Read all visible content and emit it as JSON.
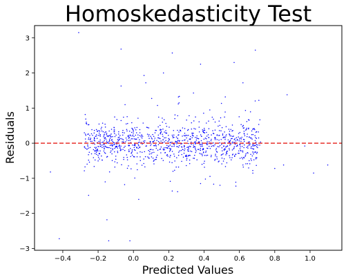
{
  "chart_data": {
    "type": "scatter",
    "title": "Homoskedasticity Test",
    "xlabel": "Predicted Values",
    "ylabel": "Residuals",
    "xlim": [
      -0.56,
      1.18
    ],
    "ylim": [
      -3.05,
      3.35
    ],
    "xticks": [
      -0.4,
      -0.2,
      0.0,
      0.2,
      0.4,
      0.6,
      0.8,
      1.0
    ],
    "xtick_labels": [
      "−0.4",
      "−0.2",
      "0.0",
      "0.2",
      "0.4",
      "0.6",
      "0.8",
      "1.0"
    ],
    "yticks": [
      -3,
      -2,
      -1,
      0,
      1,
      2,
      3
    ],
    "ytick_labels": [
      "−3",
      "−2",
      "−1",
      "0",
      "1",
      "2",
      "3"
    ],
    "reference_line": {
      "y": 0,
      "style": "dashed",
      "color": "#e8312a"
    },
    "point_color": "#0000ff",
    "grid": false,
    "series": [
      {
        "points": [
          [
            -0.31,
            3.15
          ],
          [
            -0.07,
            2.68
          ],
          [
            0.22,
            2.57
          ],
          [
            0.38,
            2.25
          ],
          [
            0.57,
            2.3
          ],
          [
            0.69,
            2.65
          ],
          [
            0.17,
            2.0
          ],
          [
            0.06,
            1.93
          ],
          [
            -0.07,
            1.63
          ],
          [
            0.07,
            1.72
          ],
          [
            0.62,
            1.72
          ],
          [
            0.34,
            1.43
          ],
          [
            0.52,
            1.32
          ],
          [
            0.87,
            1.38
          ],
          [
            0.71,
            1.22
          ],
          [
            -0.47,
            -0.82
          ],
          [
            -0.42,
            -2.72
          ],
          [
            -0.15,
            -2.18
          ],
          [
            -0.14,
            -2.78
          ],
          [
            -0.02,
            -2.78
          ],
          [
            0.03,
            -1.6
          ],
          [
            0.25,
            -1.38
          ],
          [
            -0.16,
            -1.1
          ],
          [
            -0.05,
            -1.18
          ],
          [
            0.38,
            -1.15
          ],
          [
            0.49,
            -1.2
          ],
          [
            0.58,
            -1.22
          ],
          [
            0.85,
            -0.62
          ],
          [
            1.02,
            -0.85
          ],
          [
            1.1,
            -0.62
          ],
          [
            0.97,
            -0.08
          ],
          [
            0.8,
            -0.72
          ]
        ]
      }
    ],
    "cluster": {
      "count": 1050,
      "x_range": [
        -0.28,
        0.72
      ],
      "spread": 0.28
    }
  }
}
